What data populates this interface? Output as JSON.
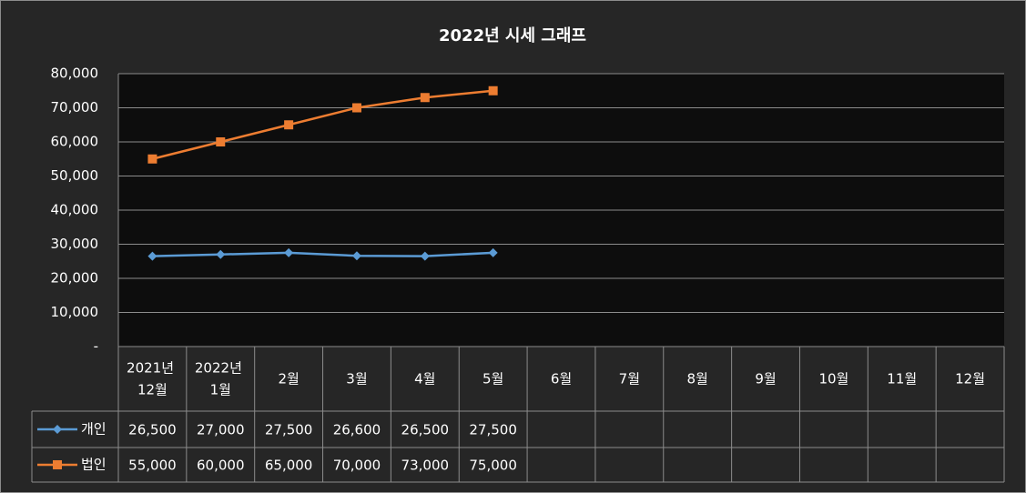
{
  "chart_data": {
    "type": "line",
    "title": "2022년 시세 그래프",
    "categories": [
      "2021년 12월",
      "2022년 1월",
      "2월",
      "3월",
      "4월",
      "5월",
      "6월",
      "7월",
      "8월",
      "9월",
      "10월",
      "11월",
      "12월"
    ],
    "series": [
      {
        "name": "개인",
        "color": "#5b9bd5",
        "marker": "diamond",
        "values": [
          26500,
          27000,
          27500,
          26600,
          26500,
          27500,
          null,
          null,
          null,
          null,
          null,
          null,
          null
        ],
        "value_labels": [
          "26,500",
          "27,000",
          "27,500",
          "26,600",
          "26,500",
          "27,500",
          null,
          null,
          null,
          null,
          null,
          null,
          null
        ]
      },
      {
        "name": "법인",
        "color": "#ed7d31",
        "marker": "square",
        "values": [
          55000,
          60000,
          65000,
          70000,
          73000,
          75000,
          null,
          null,
          null,
          null,
          null,
          null,
          null
        ],
        "value_labels": [
          "55,000",
          "60,000",
          "65,000",
          "70,000",
          "73,000",
          "75,000",
          null,
          null,
          null,
          null,
          null,
          null,
          null
        ]
      }
    ],
    "ylim": [
      0,
      80000
    ],
    "yticks": [
      {
        "value": 0,
        "label": "-"
      },
      {
        "value": 10000,
        "label": "10,000"
      },
      {
        "value": 20000,
        "label": "20,000"
      },
      {
        "value": 30000,
        "label": "30,000"
      },
      {
        "value": 40000,
        "label": "40,000"
      },
      {
        "value": 50000,
        "label": "50,000"
      },
      {
        "value": 60000,
        "label": "60,000"
      },
      {
        "value": 70000,
        "label": "70,000"
      },
      {
        "value": 80000,
        "label": "80,000"
      }
    ],
    "grid": true
  }
}
